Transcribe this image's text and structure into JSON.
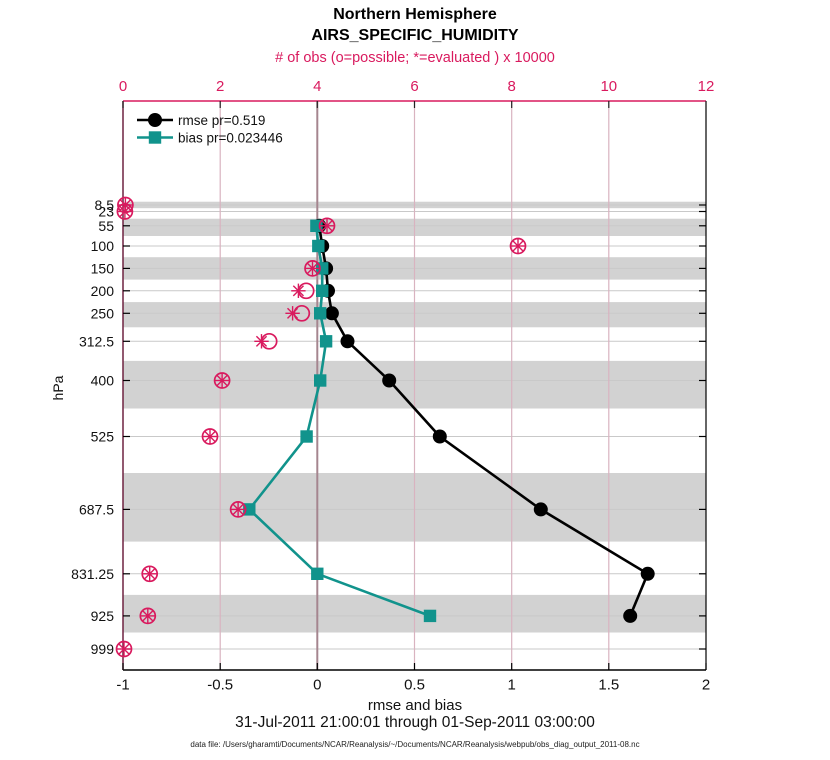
{
  "header": {
    "title": "Northern Hemisphere",
    "subtitle": "AIRS_SPECIFIC_HUMIDITY"
  },
  "chart_data": {
    "type": "line",
    "title": "Northern Hemisphere",
    "subtitle": "AIRS_SPECIFIC_HUMIDITY",
    "axes": {
      "top": {
        "label": "# of obs (o=possible; *=evaluated ) x 10000",
        "ticks": [
          0,
          2,
          4,
          6,
          8,
          10,
          12
        ],
        "range": [
          0,
          12
        ]
      },
      "bottom": {
        "label": "rmse and bias",
        "ticks": [
          -1,
          -0.5,
          0,
          0.5,
          1,
          1.5,
          2
        ],
        "range": [
          -1,
          2
        ]
      },
      "left": {
        "label": "hPa",
        "ticks": [
          8.5,
          23,
          55,
          100,
          150,
          200,
          250,
          312.5,
          400,
          525,
          687.5,
          831.25,
          925,
          999
        ]
      }
    },
    "legend": [
      {
        "label": "rmse pr=0.519",
        "marker": "circle",
        "color": "#000000"
      },
      {
        "label": "bias pr=0.023446",
        "marker": "square",
        "color": "#11938c"
      }
    ],
    "series": {
      "rmse": [
        [
          55,
          0.01
        ],
        [
          100,
          0.025
        ],
        [
          150,
          0.045
        ],
        [
          200,
          0.055
        ],
        [
          250,
          0.075
        ],
        [
          312.5,
          0.155
        ],
        [
          400,
          0.37
        ],
        [
          525,
          0.63
        ],
        [
          687.5,
          1.15
        ],
        [
          831.25,
          1.7
        ],
        [
          925,
          1.61
        ]
      ],
      "bias": [
        [
          55,
          -0.005
        ],
        [
          100,
          0.005
        ],
        [
          150,
          0.025
        ],
        [
          200,
          0.025
        ],
        [
          250,
          0.015
        ],
        [
          312.5,
          0.045
        ],
        [
          400,
          0.015
        ],
        [
          525,
          -0.055
        ],
        [
          687.5,
          -0.35
        ],
        [
          831.25,
          0.0
        ],
        [
          925,
          0.58
        ]
      ],
      "obs_possible": [
        [
          8.5,
          0.05
        ],
        [
          23,
          0.04
        ],
        [
          55,
          4.2
        ],
        [
          100,
          8.13
        ],
        [
          150,
          3.9
        ],
        [
          200,
          3.77
        ],
        [
          250,
          3.68
        ],
        [
          312.5,
          3.01
        ],
        [
          400,
          2.04
        ],
        [
          525,
          1.79
        ],
        [
          687.5,
          2.37
        ],
        [
          831.25,
          0.55
        ],
        [
          925,
          0.51
        ],
        [
          999,
          0.02
        ]
      ],
      "obs_evaluated": [
        [
          8.5,
          0.05
        ],
        [
          23,
          0.04
        ],
        [
          55,
          4.2
        ],
        [
          100,
          8.13
        ],
        [
          150,
          3.9
        ],
        [
          200,
          3.61
        ],
        [
          250,
          3.49
        ],
        [
          312.5,
          2.85
        ],
        [
          400,
          2.04
        ],
        [
          525,
          1.79
        ],
        [
          687.5,
          2.37
        ],
        [
          831.25,
          0.55
        ],
        [
          925,
          0.51
        ],
        [
          999,
          0.02
        ]
      ]
    },
    "shaded_pressure_levels": [
      8.5,
      55,
      150,
      250,
      400,
      687.5,
      925
    ],
    "grid": true,
    "legend_position": "top-left",
    "caption": "31-Jul-2011 21:00:01 through 01-Sep-2011 03:00:00",
    "datafile_note": "data file: /Users/gharamti/Documents/NCAR/Reanalysis/~/Documents/NCAR/Reanalysis/webpub/obs_diag_output_2011-08.nc",
    "colors": {
      "pink": "#d91a5e",
      "grid_pink": "#d9b3c0",
      "zero_line": "#a5858f",
      "band": "#d2d2d2",
      "teal": "#11938c",
      "black": "#000000",
      "gridline": "#c9c9c9",
      "left_spine": "#6e2240"
    }
  }
}
